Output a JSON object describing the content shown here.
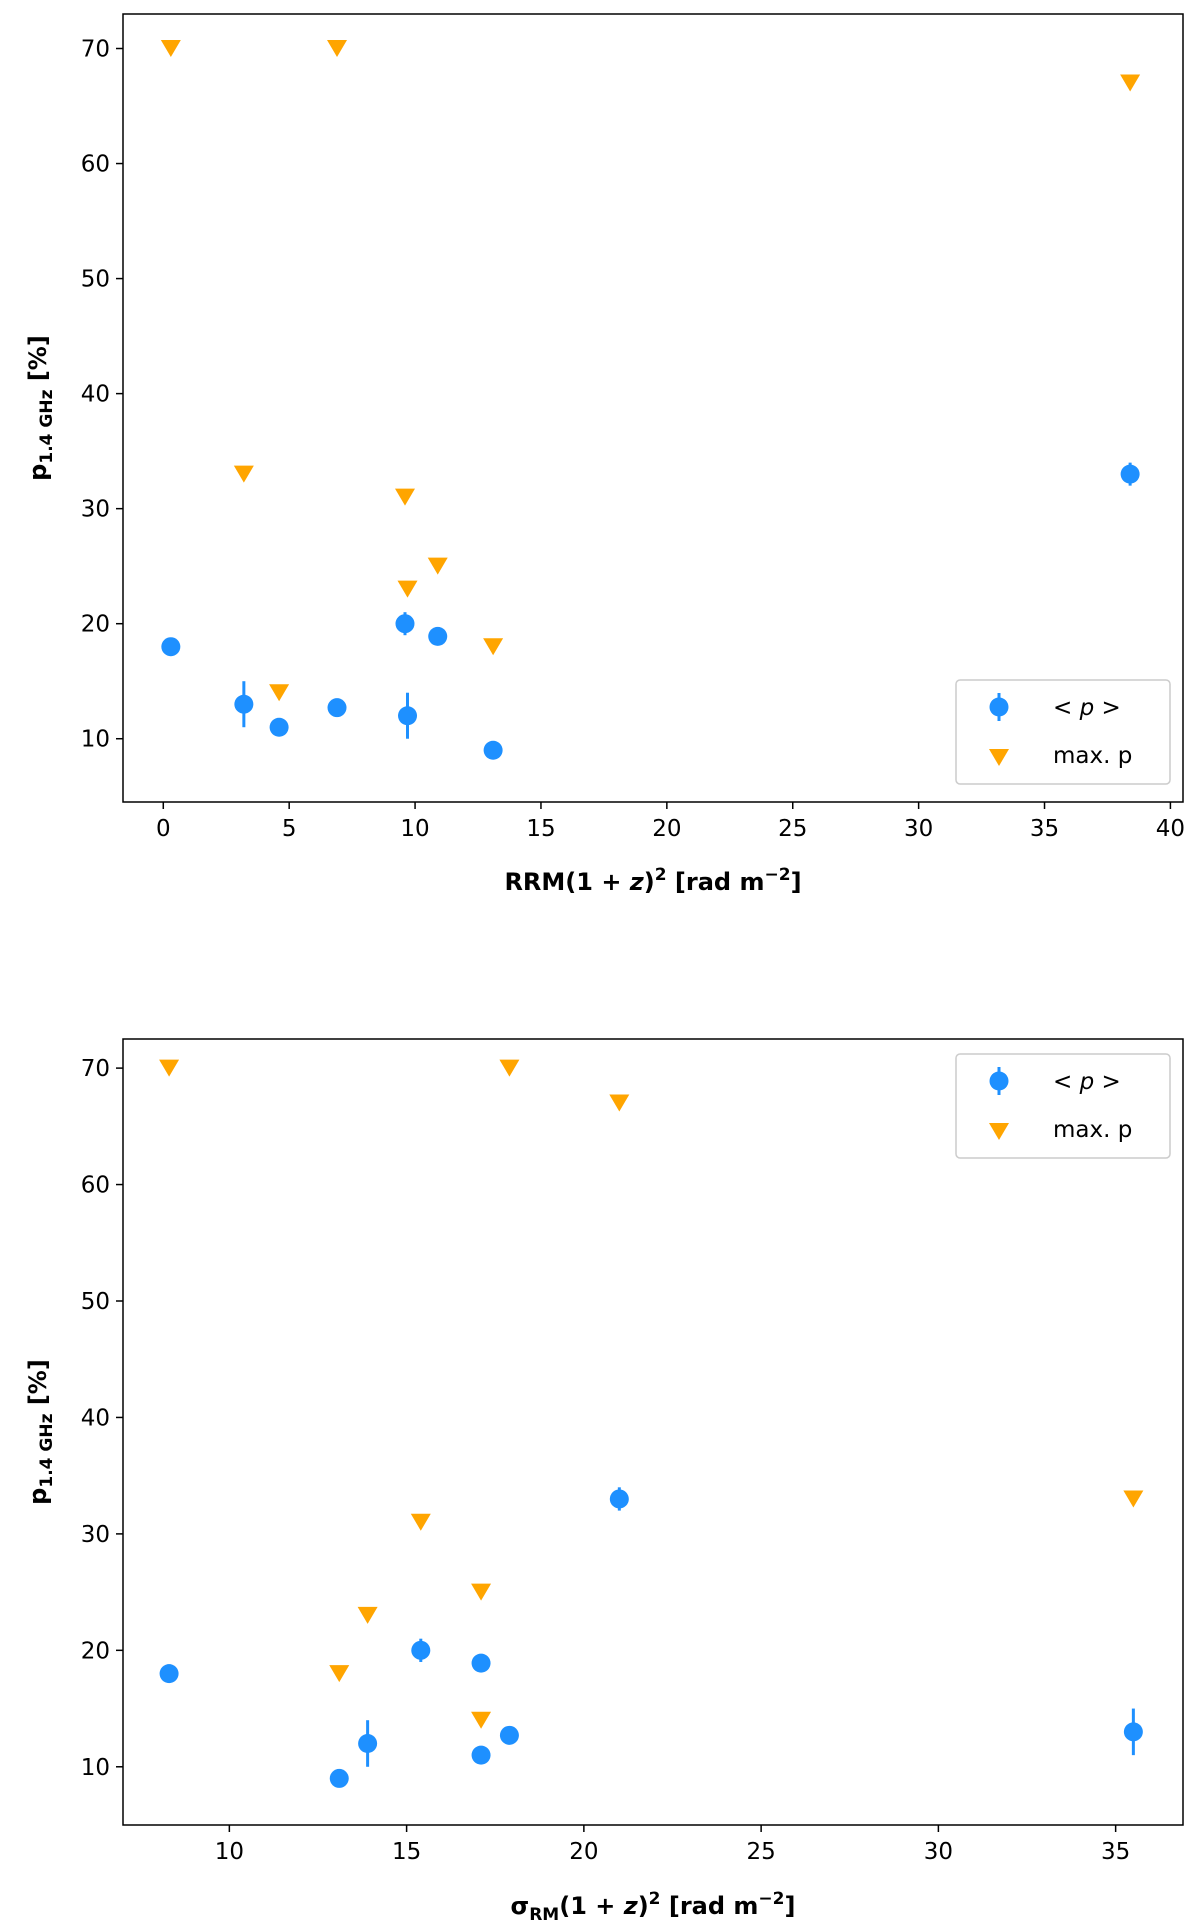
{
  "chart_data": [
    {
      "type": "scatter",
      "title": "",
      "xlabel": "RRM(1 + z)² [rad m⁻²]",
      "xlabel_parts": {
        "pre": "RRM(1",
        "plus": " + ",
        "z": "z",
        "close": ")",
        "sq": "2",
        "units": " [rad m",
        "units_exp": "−2",
        "units_close": "]"
      },
      "ylabel_parts": {
        "p": "p",
        "sub": "1.4 GHz",
        "units": " [%]"
      },
      "ylabel": "p1.4 GHz [%]",
      "xlim": [
        -1.6,
        40.5
      ],
      "ylim": [
        4.5,
        73
      ],
      "xticks": [
        0,
        5,
        10,
        15,
        20,
        25,
        30,
        35,
        40
      ],
      "yticks": [
        10,
        20,
        30,
        40,
        50,
        60,
        70
      ],
      "legend_position": "lower-right",
      "series": [
        {
          "name": "< p >",
          "marker": "circle",
          "color": "#1e90ff",
          "points": [
            {
              "x": 0.3,
              "y": 18,
              "err": 0.8
            },
            {
              "x": 3.2,
              "y": 13,
              "err": 2
            },
            {
              "x": 4.6,
              "y": 11,
              "err": 0.5
            },
            {
              "x": 6.9,
              "y": 12.7,
              "err": 0.4
            },
            {
              "x": 9.6,
              "y": 20,
              "err": 1
            },
            {
              "x": 9.7,
              "y": 12,
              "err": 2
            },
            {
              "x": 10.9,
              "y": 18.9,
              "err": 0.4
            },
            {
              "x": 13.1,
              "y": 9,
              "err": 0.4
            },
            {
              "x": 38.4,
              "y": 33,
              "err": 1
            }
          ]
        },
        {
          "name": "max. p",
          "marker": "triangle-down",
          "color": "#ffa500",
          "points": [
            {
              "x": 0.3,
              "y": 70
            },
            {
              "x": 6.9,
              "y": 70
            },
            {
              "x": 38.4,
              "y": 67
            },
            {
              "x": 3.2,
              "y": 33
            },
            {
              "x": 9.6,
              "y": 31
            },
            {
              "x": 10.9,
              "y": 25
            },
            {
              "x": 9.7,
              "y": 23
            },
            {
              "x": 13.1,
              "y": 18
            },
            {
              "x": 4.6,
              "y": 14
            }
          ]
        }
      ]
    },
    {
      "type": "scatter",
      "title": "",
      "xlabel": "σRM(1 + z)² [rad m⁻²]",
      "xlabel_parts": {
        "sigma": "σ",
        "sigma_sub": "RM",
        "pre": "(1",
        "plus": " + ",
        "z": "z",
        "close": ")",
        "sq": "2",
        "units": " [rad m",
        "units_exp": "−2",
        "units_close": "]"
      },
      "ylabel_parts": {
        "p": "p",
        "sub": "1.4 GHz",
        "units": " [%]"
      },
      "ylabel": "p1.4 GHz [%]",
      "xlim": [
        7,
        36.9
      ],
      "ylim": [
        5,
        72.5
      ],
      "xticks": [
        10,
        15,
        20,
        25,
        30,
        35
      ],
      "yticks": [
        10,
        20,
        30,
        40,
        50,
        60,
        70
      ],
      "legend_position": "upper-right",
      "series": [
        {
          "name": "< p >",
          "marker": "circle",
          "color": "#1e90ff",
          "points": [
            {
              "x": 8.3,
              "y": 18,
              "err": 0.8
            },
            {
              "x": 13.1,
              "y": 9,
              "err": 0.4
            },
            {
              "x": 13.9,
              "y": 12,
              "err": 2
            },
            {
              "x": 15.4,
              "y": 20,
              "err": 1
            },
            {
              "x": 17.1,
              "y": 18.9,
              "err": 0.4
            },
            {
              "x": 17.1,
              "y": 11,
              "err": 0.5
            },
            {
              "x": 17.9,
              "y": 12.7,
              "err": 0.4
            },
            {
              "x": 21,
              "y": 33,
              "err": 1
            },
            {
              "x": 35.5,
              "y": 13,
              "err": 2
            }
          ]
        },
        {
          "name": "max. p",
          "marker": "triangle-down",
          "color": "#ffa500",
          "points": [
            {
              "x": 8.3,
              "y": 70
            },
            {
              "x": 17.9,
              "y": 70
            },
            {
              "x": 21,
              "y": 67
            },
            {
              "x": 35.5,
              "y": 33
            },
            {
              "x": 15.4,
              "y": 31
            },
            {
              "x": 17.1,
              "y": 25
            },
            {
              "x": 13.9,
              "y": 23
            },
            {
              "x": 13.1,
              "y": 18
            },
            {
              "x": 17.1,
              "y": 14
            }
          ]
        }
      ]
    }
  ]
}
